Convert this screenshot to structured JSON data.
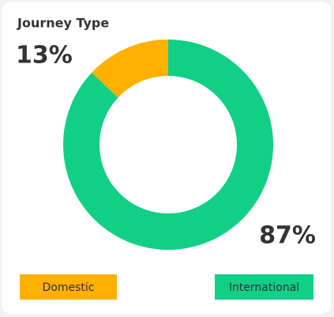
{
  "chart_data": {
    "type": "donut",
    "title": "Journey Type",
    "categories": [
      "Domestic",
      "International"
    ],
    "values": [
      13,
      87
    ],
    "value_labels": [
      "13%",
      "87%"
    ],
    "colors": [
      "#ffb000",
      "#12cf86"
    ]
  }
}
